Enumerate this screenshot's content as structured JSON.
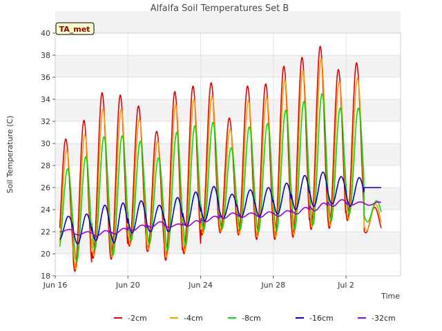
{
  "chart_data": {
    "type": "line",
    "title": "Alfalfa Soil Temperatures Set B",
    "xlabel": "Time",
    "ylabel": "Soil Temperature (C)",
    "site_label": "TA_met",
    "ylim": [
      18,
      40
    ],
    "yticks": [
      18,
      20,
      22,
      24,
      26,
      28,
      30,
      32,
      34,
      36,
      38,
      40
    ],
    "x_range_days": [
      "2024-06-16",
      "2024-07-05"
    ],
    "xticks": [
      {
        "date": "2024-06-16",
        "label": "Jun 16"
      },
      {
        "date": "2024-06-20",
        "label": "Jun 20"
      },
      {
        "date": "2024-06-24",
        "label": "Jun 24"
      },
      {
        "date": "2024-06-28",
        "label": "Jun 28"
      },
      {
        "date": "2024-07-02",
        "label": "Jul 2"
      }
    ],
    "grid": true,
    "banded_background": true,
    "legend_position": "bottom",
    "series": [
      {
        "name": "-2cm",
        "color": "#e00000",
        "daily_min": [
          19.5,
          18.4,
          19.6,
          19.5,
          20.7,
          20.2,
          19.4,
          20.0,
          21.7,
          21.9,
          21.7,
          21.3,
          21.3,
          21.5,
          22.2,
          22.3,
          23.0,
          21.9
        ],
        "daily_max": [
          30.4,
          32.1,
          34.6,
          34.4,
          33.4,
          31.1,
          34.7,
          35.2,
          35.5,
          32.3,
          35.2,
          35.4,
          37.0,
          37.8,
          38.8,
          36.7,
          37.3,
          24.2
        ]
      },
      {
        "name": "-4cm",
        "color": "#ff9900",
        "daily_min": [
          19.7,
          18.6,
          19.8,
          19.7,
          20.8,
          20.4,
          19.7,
          20.2,
          21.8,
          22.0,
          21.8,
          21.5,
          21.5,
          21.7,
          22.4,
          22.5,
          23.1,
          22.1
        ],
        "daily_max": [
          29.4,
          30.8,
          33.1,
          33.1,
          32.2,
          30.2,
          33.5,
          34.0,
          34.3,
          31.3,
          33.9,
          34.2,
          35.8,
          36.6,
          37.7,
          35.6,
          35.9,
          24.5
        ]
      },
      {
        "name": "-8cm",
        "color": "#00dd00",
        "daily_min": [
          20.3,
          19.3,
          20.4,
          19.9,
          21.2,
          20.9,
          20.3,
          20.8,
          22.2,
          22.3,
          22.2,
          22.0,
          22.1,
          22.2,
          22.6,
          23.0,
          23.6,
          22.9
        ],
        "daily_max": [
          27.7,
          28.8,
          30.6,
          30.7,
          30.2,
          28.7,
          31.0,
          31.6,
          31.9,
          29.6,
          31.5,
          31.8,
          33.0,
          33.8,
          34.5,
          33.2,
          33.2,
          24.8
        ]
      },
      {
        "name": "-16cm",
        "color": "#0000cc",
        "daily_min": [
          21.3,
          20.9,
          21.2,
          21.0,
          21.9,
          22.0,
          22.0,
          22.5,
          23.0,
          23.2,
          23.3,
          23.4,
          23.6,
          24.0,
          24.3,
          24.5,
          24.3,
          26.0
        ],
        "daily_max": [
          23.4,
          23.6,
          24.4,
          24.6,
          24.8,
          24.4,
          25.1,
          25.6,
          26.1,
          25.4,
          25.8,
          26.0,
          26.4,
          27.1,
          27.4,
          27.0,
          26.9,
          26.0
        ]
      },
      {
        "name": "-32cm",
        "color": "#9900cc",
        "daily_min": [
          22.0,
          21.7,
          21.6,
          21.8,
          22.1,
          22.4,
          22.4,
          22.5,
          22.9,
          23.2,
          23.3,
          23.3,
          23.4,
          23.6,
          23.9,
          24.3,
          24.4,
          24.4
        ],
        "daily_max": [
          22.2,
          22.0,
          22.1,
          22.3,
          22.6,
          22.9,
          22.7,
          23.0,
          23.4,
          23.7,
          23.7,
          23.8,
          23.9,
          24.2,
          24.6,
          24.9,
          24.7,
          24.7
        ]
      }
    ]
  }
}
